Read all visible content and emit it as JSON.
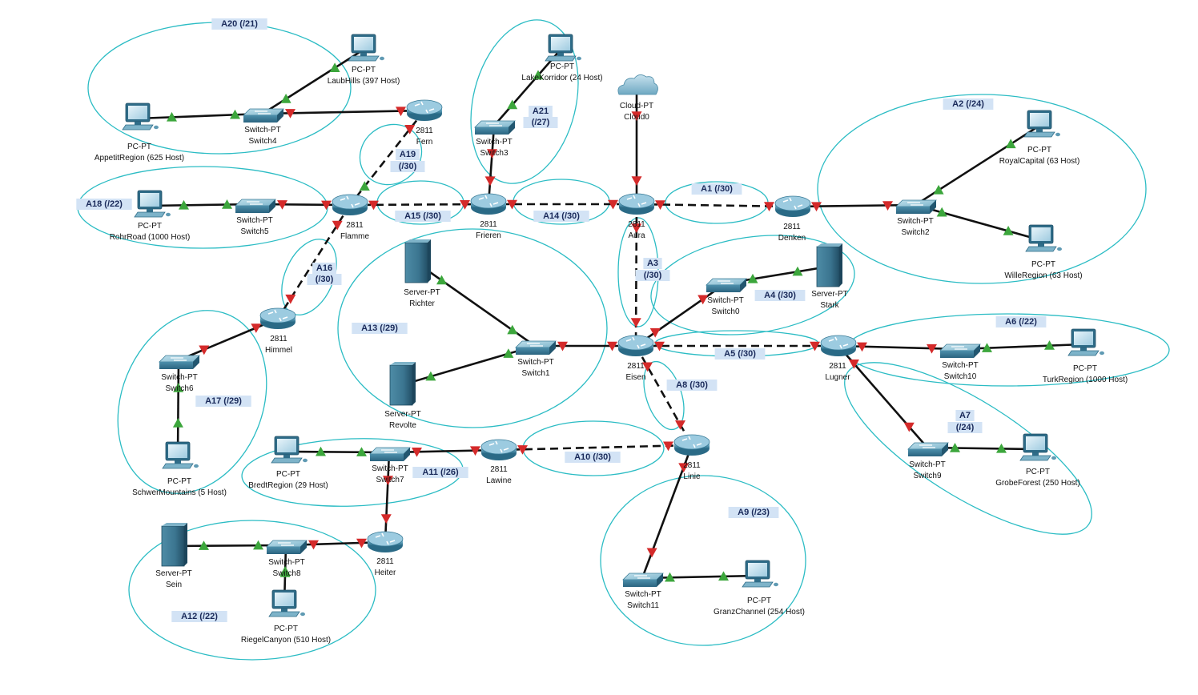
{
  "colors": {
    "background": "#ffffff",
    "area_outline": "#2bbcc4",
    "area_label_bg": "#d3e3f5",
    "link": "#111111",
    "link_up": "#3ca63c",
    "link_down": "#d42a2a",
    "device_body": "#3f84a0"
  },
  "areas": [
    {
      "id": "A20",
      "label": "A20 (/21)"
    },
    {
      "id": "A21",
      "label": "A21",
      "label2": "(/27)"
    },
    {
      "id": "A19",
      "label": "A19",
      "label2": "(/30)"
    },
    {
      "id": "A18",
      "label": "A18 (/22)"
    },
    {
      "id": "A15",
      "label": "A15 (/30)"
    },
    {
      "id": "A14",
      "label": "A14 (/30)"
    },
    {
      "id": "A1",
      "label": "A1 (/30)"
    },
    {
      "id": "A2",
      "label": "A2 (/24)"
    },
    {
      "id": "A16",
      "label": "A16",
      "label2": "(/30)"
    },
    {
      "id": "A3",
      "label": "A3",
      "label2": "(/30)"
    },
    {
      "id": "A4",
      "label": "A4 (/30)"
    },
    {
      "id": "A13",
      "label": "A13 (/29)"
    },
    {
      "id": "A6",
      "label": "A6 (/22)"
    },
    {
      "id": "A5",
      "label": "A5 (/30)"
    },
    {
      "id": "A17",
      "label": "A17 (/29)"
    },
    {
      "id": "A8",
      "label": "A8 (/30)"
    },
    {
      "id": "A7",
      "label": "A7",
      "label2": "(/24)"
    },
    {
      "id": "A11",
      "label": "A11 (/26)"
    },
    {
      "id": "A10",
      "label": "A10 (/30)"
    },
    {
      "id": "A9",
      "label": "A9 (/23)"
    },
    {
      "id": "A12",
      "label": "A12 (/22)"
    }
  ],
  "devices": [
    {
      "id": "laubhills",
      "kind": "pc",
      "line1": "PC-PT",
      "line2": "LaubHills (397 Host)"
    },
    {
      "id": "appetit",
      "kind": "pc",
      "line1": "PC-PT",
      "line2": "AppetitRegion (625 Host)"
    },
    {
      "id": "switch4",
      "kind": "switch",
      "line1": "Switch-PT",
      "line2": "Switch4"
    },
    {
      "id": "fern",
      "kind": "router",
      "line1": "2811",
      "line2": "Fern"
    },
    {
      "id": "lakekorridor",
      "kind": "pc",
      "line1": "PC-PT",
      "line2": "LakeKorridor (24 Host)"
    },
    {
      "id": "switch3",
      "kind": "switch",
      "line1": "Switch-PT",
      "line2": "Switch3"
    },
    {
      "id": "cloud0",
      "kind": "cloud",
      "line1": "Cloud-PT",
      "line2": "Cloud0"
    },
    {
      "id": "royal",
      "kind": "pc",
      "line1": "PC-PT",
      "line2": "RoyalCapital (63 Host)"
    },
    {
      "id": "rohr",
      "kind": "pc",
      "line1": "PC-PT",
      "line2": "RohrRoad (1000 Host)"
    },
    {
      "id": "switch5",
      "kind": "switch",
      "line1": "Switch-PT",
      "line2": "Switch5"
    },
    {
      "id": "flamme",
      "kind": "router",
      "line1": "2811",
      "line2": "Flamme"
    },
    {
      "id": "frieren",
      "kind": "router",
      "line1": "2811",
      "line2": "Frieren"
    },
    {
      "id": "aura",
      "kind": "router",
      "line1": "2811",
      "line2": "Aura"
    },
    {
      "id": "denken",
      "kind": "router",
      "line1": "2811",
      "line2": "Denken"
    },
    {
      "id": "switch2",
      "kind": "switch",
      "line1": "Switch-PT",
      "line2": "Switch2"
    },
    {
      "id": "wille",
      "kind": "pc",
      "line1": "PC-PT",
      "line2": "WilleRegion (63 Host)"
    },
    {
      "id": "richter",
      "kind": "server",
      "line1": "Server-PT",
      "line2": "Richter"
    },
    {
      "id": "stark",
      "kind": "server",
      "line1": "Server-PT",
      "line2": "Stark"
    },
    {
      "id": "switch0",
      "kind": "switch",
      "line1": "Switch-PT",
      "line2": "Switch0"
    },
    {
      "id": "himmel",
      "kind": "router",
      "line1": "2811",
      "line2": "Himmel"
    },
    {
      "id": "switch1",
      "kind": "switch",
      "line1": "Switch-PT",
      "line2": "Switch1"
    },
    {
      "id": "eisen",
      "kind": "router",
      "line1": "2811",
      "line2": "Eisen"
    },
    {
      "id": "lugner",
      "kind": "router",
      "line1": "2811",
      "line2": "Lugner"
    },
    {
      "id": "switch10",
      "kind": "switch",
      "line1": "Switch-PT",
      "line2": "Switch10"
    },
    {
      "id": "turk",
      "kind": "pc",
      "line1": "PC-PT",
      "line2": "TurkRegion (1000 Host)"
    },
    {
      "id": "switch6",
      "kind": "switch",
      "line1": "Switch-PT",
      "line2": "Switch6"
    },
    {
      "id": "revolte",
      "kind": "server",
      "line1": "Server-PT",
      "line2": "Revolte"
    },
    {
      "id": "switch9",
      "kind": "switch",
      "line1": "Switch-PT",
      "line2": "Switch9"
    },
    {
      "id": "grobe",
      "kind": "pc",
      "line1": "PC-PT",
      "line2": "GrobeForest (250 Host)"
    },
    {
      "id": "schwer",
      "kind": "pc",
      "line1": "PC-PT",
      "line2": "SchwerMountains (5 Host)"
    },
    {
      "id": "bredt",
      "kind": "pc",
      "line1": "PC-PT",
      "line2": "BredtRegion (29 Host)"
    },
    {
      "id": "switch7",
      "kind": "switch",
      "line1": "Switch-PT",
      "line2": "Switch7"
    },
    {
      "id": "lawine",
      "kind": "router",
      "line1": "2811",
      "line2": "Lawine"
    },
    {
      "id": "linie",
      "kind": "router",
      "line1": "2811",
      "line2": "Linie"
    },
    {
      "id": "sein",
      "kind": "server",
      "line1": "Server-PT",
      "line2": "Sein"
    },
    {
      "id": "switch8",
      "kind": "switch",
      "line1": "Switch-PT",
      "line2": "Switch8"
    },
    {
      "id": "heiter",
      "kind": "router",
      "line1": "2811",
      "line2": "Heiter"
    },
    {
      "id": "riegel",
      "kind": "pc",
      "line1": "PC-PT",
      "line2": "RiegelCanyon (510 Host)"
    },
    {
      "id": "switch11",
      "kind": "switch",
      "line1": "Switch-PT",
      "line2": "Switch11"
    },
    {
      "id": "granz",
      "kind": "pc",
      "line1": "PC-PT",
      "line2": "GranzChannel (254 Host)"
    }
  ],
  "links": [
    {
      "from": "appetit",
      "to": "switch4",
      "type": "straight",
      "a": "up",
      "b": "up"
    },
    {
      "from": "switch4",
      "to": "laubhills",
      "type": "straight",
      "a": "up",
      "b": "up"
    },
    {
      "from": "switch4",
      "to": "fern",
      "type": "straight",
      "a": "down",
      "b": "down"
    },
    {
      "from": "fern",
      "to": "flamme",
      "type": "serial",
      "a": "down",
      "b": "up"
    },
    {
      "from": "switch3",
      "to": "lakekorridor",
      "type": "straight",
      "a": "up",
      "b": "up"
    },
    {
      "from": "switch3",
      "to": "frieren",
      "type": "straight",
      "a": "down",
      "b": "down"
    },
    {
      "from": "cloud0",
      "to": "aura",
      "type": "straight",
      "a": "down",
      "b": "down"
    },
    {
      "from": "rohr",
      "to": "switch5",
      "type": "straight",
      "a": "up",
      "b": "up"
    },
    {
      "from": "switch5",
      "to": "flamme",
      "type": "straight",
      "a": "down",
      "b": "down"
    },
    {
      "from": "flamme",
      "to": "frieren",
      "type": "serial",
      "a": "down",
      "b": "down"
    },
    {
      "from": "frieren",
      "to": "aura",
      "type": "serial",
      "a": "down",
      "b": "down"
    },
    {
      "from": "aura",
      "to": "denken",
      "type": "serial",
      "a": "down",
      "b": "down"
    },
    {
      "from": "denken",
      "to": "switch2",
      "type": "straight",
      "a": "down",
      "b": "down"
    },
    {
      "from": "switch2",
      "to": "royal",
      "type": "straight",
      "a": "up",
      "b": "up"
    },
    {
      "from": "switch2",
      "to": "wille",
      "type": "straight",
      "a": "up",
      "b": "up"
    },
    {
      "from": "flamme",
      "to": "himmel",
      "type": "serial",
      "a": "down",
      "b": "down"
    },
    {
      "from": "aura",
      "to": "eisen",
      "type": "serial",
      "a": "down",
      "b": "down"
    },
    {
      "from": "richter",
      "to": "switch1",
      "type": "straight",
      "a": "up",
      "b": "up"
    },
    {
      "from": "revolte",
      "to": "switch1",
      "type": "straight",
      "a": "up",
      "b": "up"
    },
    {
      "from": "switch1",
      "to": "eisen",
      "type": "straight",
      "a": "down",
      "b": "down"
    },
    {
      "from": "eisen",
      "to": "switch0",
      "type": "straight",
      "a": "down",
      "b": "down"
    },
    {
      "from": "switch0",
      "to": "stark",
      "type": "straight",
      "a": "up",
      "b": "up"
    },
    {
      "from": "eisen",
      "to": "lugner",
      "type": "serial",
      "a": "down",
      "b": "down"
    },
    {
      "from": "lugner",
      "to": "switch10",
      "type": "straight",
      "a": "down",
      "b": "down"
    },
    {
      "from": "switch10",
      "to": "turk",
      "type": "straight",
      "a": "up",
      "b": "up"
    },
    {
      "from": "lugner",
      "to": "switch9",
      "type": "straight",
      "a": "down",
      "b": "down"
    },
    {
      "from": "switch9",
      "to": "grobe",
      "type": "straight",
      "a": "up",
      "b": "up"
    },
    {
      "from": "himmel",
      "to": "switch6",
      "type": "straight",
      "a": "down",
      "b": "down"
    },
    {
      "from": "switch6",
      "to": "schwer",
      "type": "straight",
      "a": "up",
      "b": "up"
    },
    {
      "from": "eisen",
      "to": "linie",
      "type": "serial",
      "a": "down",
      "b": "down"
    },
    {
      "from": "lawine",
      "to": "linie",
      "type": "serial",
      "a": "down",
      "b": "down"
    },
    {
      "from": "bredt",
      "to": "switch7",
      "type": "straight",
      "a": "up",
      "b": "up"
    },
    {
      "from": "switch7",
      "to": "lawine",
      "type": "straight",
      "a": "down",
      "b": "down"
    },
    {
      "from": "switch7",
      "to": "heiter",
      "type": "straight",
      "a": "down",
      "b": "down"
    },
    {
      "from": "sein",
      "to": "switch8",
      "type": "straight",
      "a": "up",
      "b": "up"
    },
    {
      "from": "switch8",
      "to": "heiter",
      "type": "straight",
      "a": "down",
      "b": "down"
    },
    {
      "from": "switch8",
      "to": "riegel",
      "type": "straight",
      "a": "up",
      "b": "up"
    },
    {
      "from": "linie",
      "to": "switch11",
      "type": "straight",
      "a": "down",
      "b": "down"
    },
    {
      "from": "switch11",
      "to": "granz",
      "type": "straight",
      "a": "up",
      "b": "up"
    }
  ]
}
